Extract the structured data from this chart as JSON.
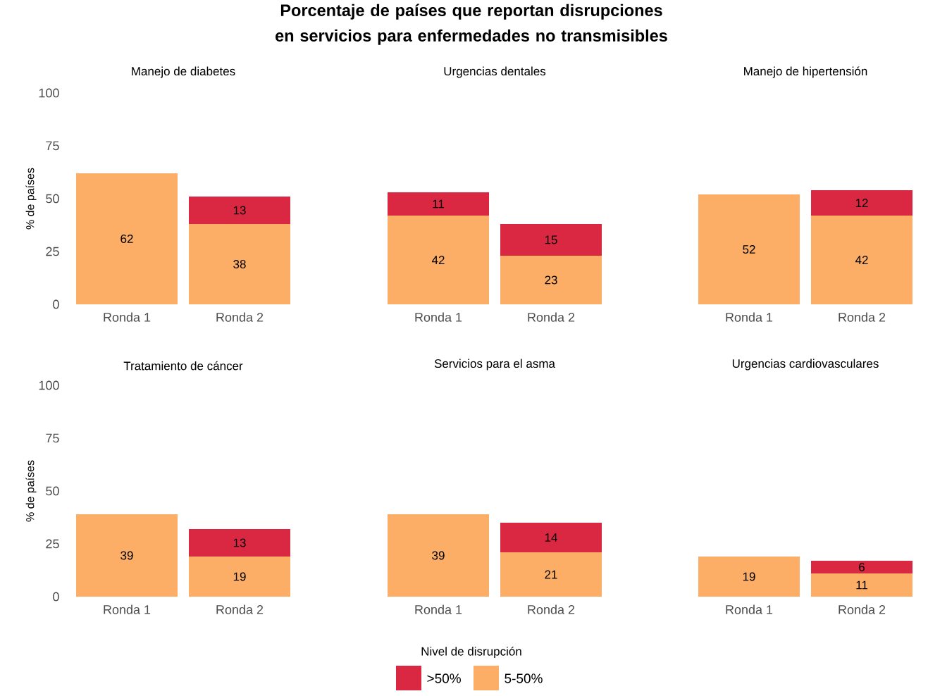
{
  "chart_data": [
    {
      "type": "bar",
      "stacked": true,
      "subtitle": "Manejo de diabetes",
      "ylabel": "% de países",
      "categories": [
        "Ronda 1",
        "Ronda 2"
      ],
      "ylim": [
        0,
        100
      ],
      "yticks": [
        0,
        25,
        50,
        75,
        100
      ],
      "data_labels": true,
      "series": [
        {
          "color": "#fcae67",
          "values": [
            62,
            38
          ]
        },
        {
          "color": "#da2842",
          "values": [
            null,
            13
          ]
        }
      ]
    },
    {
      "type": "bar",
      "stacked": true,
      "title": "Porcentaje de países que reportan disrupciones en servicios para enfermedades no transmisibles",
      "subtitle": "Urgencias dentales",
      "categories": [
        "Ronda 1",
        "Ronda 2"
      ],
      "ylim": [
        0,
        100
      ],
      "yticks": [
        0,
        25,
        50,
        75,
        100
      ],
      "tick_labels": "x",
      "data_labels": true,
      "series": [
        {
          "color": "#fcae67",
          "values": [
            42,
            23
          ]
        },
        {
          "color": "#da2842",
          "values": [
            11,
            15
          ]
        }
      ]
    },
    {
      "type": "bar",
      "stacked": true,
      "subtitle": "Manejo de hipertensión",
      "categories": [
        "Ronda 1",
        "Ronda 2"
      ],
      "ylim": [
        0,
        100
      ],
      "yticks": [
        0,
        25,
        50,
        75,
        100
      ],
      "tick_labels": "x",
      "data_labels": true,
      "series": [
        {
          "color": "#fcae67",
          "values": [
            52,
            42
          ]
        },
        {
          "color": "#da2842",
          "values": [
            null,
            12
          ]
        }
      ]
    },
    {
      "type": "bar",
      "stacked": true,
      "subtitle": "Tratamiento de cáncer",
      "ylabel": "% de países",
      "categories": [
        "Ronda 1",
        "Ronda 2"
      ],
      "ylim": [
        0,
        100
      ],
      "yticks": [
        0,
        25,
        50,
        75,
        100
      ],
      "data_labels": true,
      "series": [
        {
          "color": "#fcae67",
          "values": [
            39,
            19
          ]
        },
        {
          "color": "#da2842",
          "values": [
            null,
            13
          ]
        }
      ]
    },
    {
      "type": "bar",
      "stacked": true,
      "subtitle": "Servicios para el asma",
      "categories": [
        "Ronda 1",
        "Ronda 2"
      ],
      "ylim": [
        0,
        100
      ],
      "yticks": [
        0,
        25,
        50,
        75,
        100
      ],
      "tick_labels": "x",
      "data_labels": true,
      "series": [
        {
          "color": "#fcae67",
          "values": [
            39,
            21
          ]
        },
        {
          "color": "#da2842",
          "values": [
            null,
            14
          ]
        }
      ]
    },
    {
      "type": "bar",
      "stacked": true,
      "subtitle": "Urgencias cardiovasculares",
      "categories": [
        "Ronda 1",
        "Ronda 2"
      ],
      "ylim": [
        0,
        100
      ],
      "yticks": [
        0,
        25,
        50,
        75,
        100
      ],
      "tick_labels": "x",
      "data_labels": true,
      "legend": "bottom",
      "legend_title": "Nivel de disrupción",
      "series": [
        {
          "name": "5-50%",
          "color": "#fcae67",
          "values": [
            19,
            11
          ]
        },
        {
          "name": ">50%",
          "color": "#da2842",
          "values": [
            null,
            6
          ]
        }
      ]
    }
  ]
}
